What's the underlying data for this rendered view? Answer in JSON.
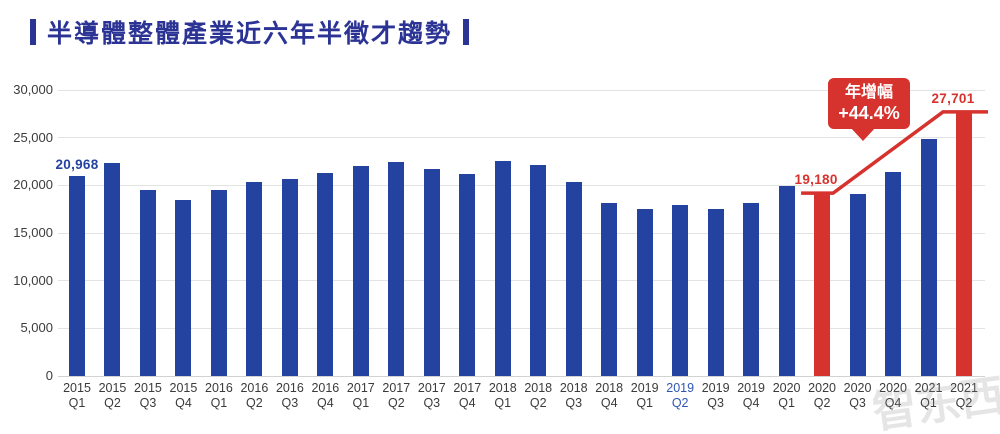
{
  "title": {
    "text": "半導體整體產業近六年半徵才趨勢"
  },
  "colors": {
    "navy": "#2B3494",
    "bar_blue": "#2443A1",
    "bar_red": "#D6322E",
    "grid": "#E3E3E3",
    "axis_text": "#3B3B3B",
    "highlight_label_blue": "#2F55B5"
  },
  "callout": {
    "line1": "年增幅",
    "line2": "+44.4%"
  },
  "watermark": {
    "text": "智东西"
  },
  "chart_data": {
    "type": "bar",
    "title": "半導體整體產業近六年半徵才趨勢",
    "ylim": [
      0,
      30000
    ],
    "ytick_interval": 5000,
    "ytick_labels": [
      "0",
      "5,000",
      "10,000",
      "15,000",
      "20,000",
      "25,000",
      "30,000"
    ],
    "grid": true,
    "legend": "none",
    "categories": [
      {
        "year": "2015",
        "quarter": "Q1"
      },
      {
        "year": "2015",
        "quarter": "Q2"
      },
      {
        "year": "2015",
        "quarter": "Q3"
      },
      {
        "year": "2015",
        "quarter": "Q4"
      },
      {
        "year": "2016",
        "quarter": "Q1"
      },
      {
        "year": "2016",
        "quarter": "Q2"
      },
      {
        "year": "2016",
        "quarter": "Q3"
      },
      {
        "year": "2016",
        "quarter": "Q4"
      },
      {
        "year": "2017",
        "quarter": "Q1"
      },
      {
        "year": "2017",
        "quarter": "Q2"
      },
      {
        "year": "2017",
        "quarter": "Q3"
      },
      {
        "year": "2017",
        "quarter": "Q4"
      },
      {
        "year": "2018",
        "quarter": "Q1"
      },
      {
        "year": "2018",
        "quarter": "Q2"
      },
      {
        "year": "2018",
        "quarter": "Q3"
      },
      {
        "year": "2018",
        "quarter": "Q4"
      },
      {
        "year": "2019",
        "quarter": "Q1"
      },
      {
        "year": "2019",
        "quarter": "Q2"
      },
      {
        "year": "2019",
        "quarter": "Q3"
      },
      {
        "year": "2019",
        "quarter": "Q4"
      },
      {
        "year": "2020",
        "quarter": "Q1"
      },
      {
        "year": "2020",
        "quarter": "Q2"
      },
      {
        "year": "2020",
        "quarter": "Q3"
      },
      {
        "year": "2020",
        "quarter": "Q4"
      },
      {
        "year": "2021",
        "quarter": "Q1"
      },
      {
        "year": "2021",
        "quarter": "Q2"
      }
    ],
    "values": [
      20968,
      22300,
      19500,
      18500,
      19500,
      20300,
      20700,
      21300,
      22000,
      22500,
      21700,
      21200,
      22600,
      22100,
      20300,
      18100,
      17500,
      17900,
      17500,
      18100,
      19900,
      19180,
      19100,
      21400,
      24900,
      27701
    ],
    "red_bar_indices": [
      21,
      25
    ],
    "blue_xlabel_index": 17,
    "annotations": [
      {
        "index": 0,
        "label": "20,968",
        "color": "#2443A1",
        "dx": 0
      },
      {
        "index": 21,
        "label": "19,180",
        "color": "#D6322E",
        "dx": -6
      },
      {
        "index": 25,
        "label": "27,701",
        "color": "#D6322E",
        "dx": -11
      }
    ],
    "yoy_line": {
      "from_index": 21,
      "from_value": 19180,
      "to_index": 25,
      "to_value": 27701,
      "label": "年增幅 +44.4%"
    }
  }
}
